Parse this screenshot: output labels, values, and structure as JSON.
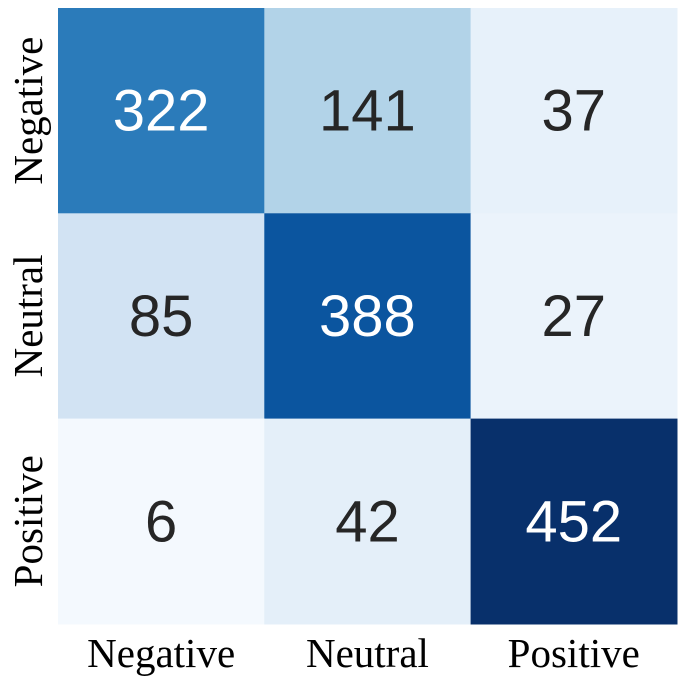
{
  "chart_data": {
    "type": "heatmap",
    "title": "",
    "xlabel": "",
    "ylabel": "",
    "x_labels": [
      "Negative",
      "Neutral",
      "Positive"
    ],
    "y_labels": [
      "Negative",
      "Neutral",
      "Positive"
    ],
    "values": [
      [
        322,
        141,
        37
      ],
      [
        85,
        388,
        27
      ],
      [
        6,
        42,
        452
      ]
    ],
    "colormap": "Blues",
    "value_range": [
      0,
      452
    ],
    "colorbar": false,
    "dark_text_color": "#262626",
    "light_text_color": "#ffffff"
  }
}
